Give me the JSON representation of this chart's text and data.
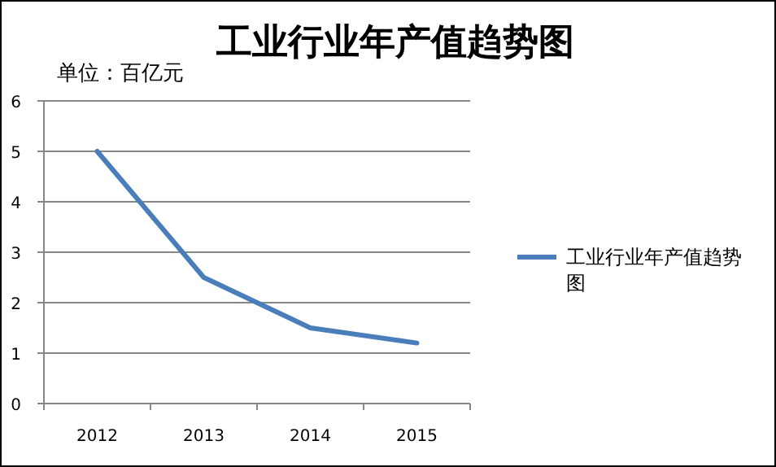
{
  "chart_data": {
    "type": "line",
    "title": "工业行业年产值趋势图",
    "annotations": [
      "单位：百亿元"
    ],
    "categories": [
      "2012",
      "2013",
      "2014",
      "2015"
    ],
    "series": [
      {
        "name": "工业行业年产值趋势图",
        "color": "#4a7ebb",
        "values": [
          5,
          2.5,
          1.5,
          1.2
        ]
      }
    ],
    "ylim": [
      0,
      6
    ],
    "yticks": [
      0,
      1,
      2,
      3,
      4,
      5,
      6
    ],
    "grid": "y",
    "legend": "right",
    "marker": "none",
    "line_style": "solid"
  }
}
